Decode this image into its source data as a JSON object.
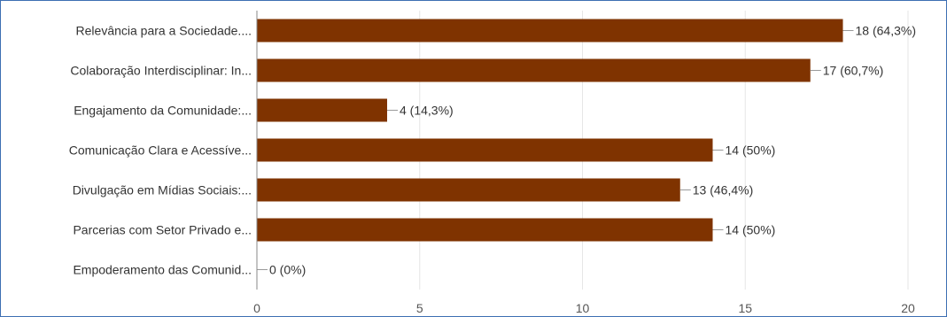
{
  "chart_data": {
    "type": "bar",
    "orientation": "horizontal",
    "categories": [
      "Relevância para a Sociedade....",
      "Colaboração Interdisciplinar: In...",
      "Engajamento da Comunidade:...",
      "Comunicação Clara e Acessíve...",
      "Divulgação em Mídias Sociais:...",
      "Parcerias com Setor Privado e...",
      "Empoderamento das Comunid..."
    ],
    "values": [
      18,
      17,
      4,
      14,
      13,
      14,
      0
    ],
    "data_labels": [
      "18 (64,3%)",
      "17 (60,7%)",
      "4 (14,3%)",
      "14 (50%)",
      "13 (46,4%)",
      "14 (50%)",
      "0 (0%)"
    ],
    "xlim": [
      0,
      20
    ],
    "xticks": [
      "0",
      "5",
      "10",
      "15",
      "20"
    ],
    "grid": true,
    "bar_color": "#7f3300"
  }
}
